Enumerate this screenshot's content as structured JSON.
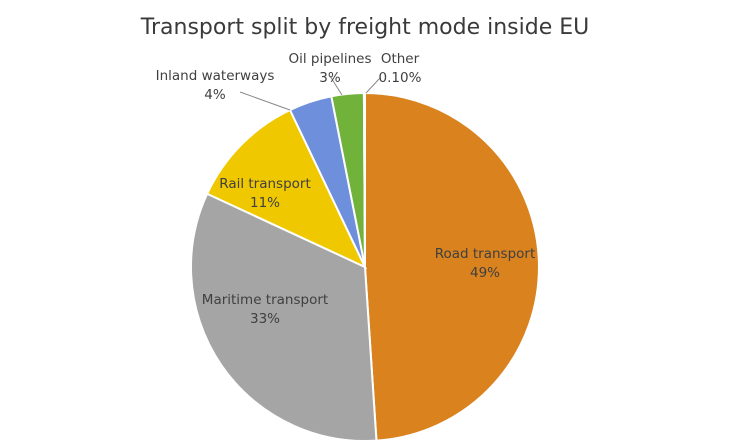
{
  "chart_data": {
    "type": "pie",
    "title": "Transport split by freight mode inside EU",
    "slices": [
      {
        "name": "Road transport",
        "value": 49,
        "value_label": "49%",
        "color": "#D9821E"
      },
      {
        "name": "Maritime transport",
        "value": 33,
        "value_label": "33%",
        "color": "#A5A5A5"
      },
      {
        "name": "Rail transport",
        "value": 11,
        "value_label": "11%",
        "color": "#F0C800"
      },
      {
        "name": "Inland waterways",
        "value": 4,
        "value_label": "4%",
        "color": "#6E8FDC"
      },
      {
        "name": "Oil pipelines",
        "value": 3,
        "value_label": "3%",
        "color": "#71B23A"
      },
      {
        "name": "Other",
        "value": 0.1,
        "value_label": "0.10%",
        "color": "#2F64B5"
      }
    ]
  }
}
